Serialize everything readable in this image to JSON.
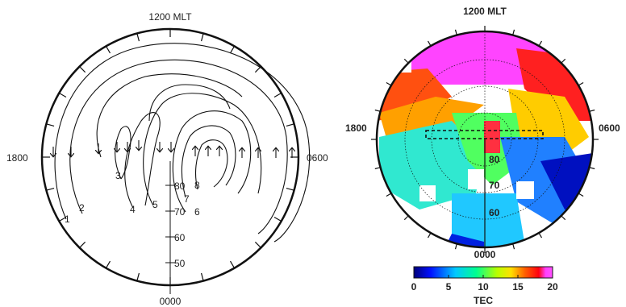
{
  "left_panel": {
    "noon_label": "1200 MLT",
    "midnight_label": "0000",
    "dusk_label": "1800",
    "dawn_label": "0600",
    "latitude_labels": [
      "80",
      "70",
      "60",
      "50"
    ],
    "contour_labels": [
      "1",
      "2",
      "3",
      "4",
      "5",
      "6",
      "7",
      "8"
    ]
  },
  "right_panel": {
    "noon_label": "1200 MLT",
    "midnight_label": "0000",
    "dusk_label": "1800",
    "dawn_label": "0600",
    "latitude_labels": [
      "80",
      "70",
      "60"
    ],
    "colorbar": {
      "title": "TEC",
      "tick_labels": [
        "0",
        "5",
        "10",
        "15",
        "20"
      ],
      "colors": [
        "#00008b",
        "#0000ff",
        "#00c0ff",
        "#00ff80",
        "#c0ff00",
        "#ffff00",
        "#ff8000",
        "#ff0000",
        "#ff40ff"
      ]
    }
  }
}
